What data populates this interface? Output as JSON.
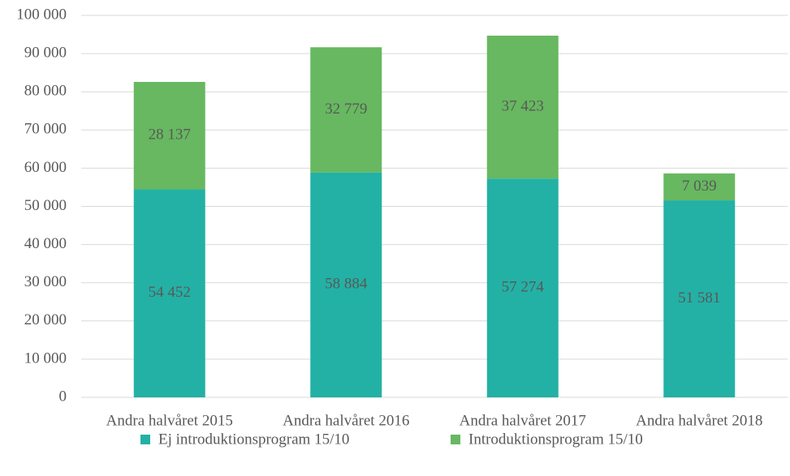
{
  "chart_data": {
    "type": "stacked_bar",
    "categories": [
      "Andra halvåret 2015",
      "Andra halvåret 2016",
      "Andra halvåret 2017",
      "Andra halvåret 2018"
    ],
    "series": [
      {
        "name": "Ej introduktionsprogram 15/10",
        "color": "#23b1a5",
        "values": [
          54452,
          58884,
          57274,
          51581
        ],
        "value_labels": [
          "54 452",
          "58 884",
          "57 274",
          "51 581"
        ]
      },
      {
        "name": "Introduktionsprogram 15/10",
        "color": "#67b860",
        "values": [
          28137,
          32779,
          37423,
          7039
        ],
        "value_labels": [
          "28 137",
          "32 779",
          "37 423",
          "7 039"
        ]
      }
    ],
    "ylim": [
      0,
      100000
    ],
    "yticks": [
      0,
      {
        "value": 10000,
        "label": "10 000"
      },
      {
        "value": 20000,
        "label": "20 000"
      },
      {
        "value": 30000,
        "label": "30 000"
      },
      {
        "value": 40000,
        "label": "40 000"
      },
      {
        "value": 50000,
        "label": "50 000"
      },
      {
        "value": 60000,
        "label": "60 000"
      },
      {
        "value": 70000,
        "label": "70 000"
      },
      {
        "value": 80000,
        "label": "80 000"
      },
      {
        "value": 90000,
        "label": "90 000"
      },
      {
        "value": 100000,
        "label": "100 000"
      }
    ],
    "grid": true,
    "legend": "bottom"
  }
}
